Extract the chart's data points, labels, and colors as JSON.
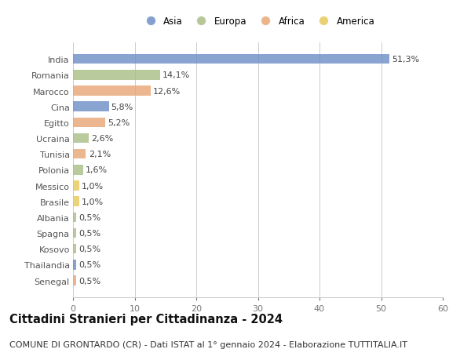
{
  "countries": [
    "India",
    "Romania",
    "Marocco",
    "Cina",
    "Egitto",
    "Ucraina",
    "Tunisia",
    "Polonia",
    "Messico",
    "Brasile",
    "Albania",
    "Spagna",
    "Kosovo",
    "Thailandia",
    "Senegal"
  ],
  "values": [
    51.3,
    14.1,
    12.6,
    5.8,
    5.2,
    2.6,
    2.1,
    1.6,
    1.0,
    1.0,
    0.5,
    0.5,
    0.5,
    0.5,
    0.5
  ],
  "value_labels": [
    "51,3%",
    "14,1%",
    "12,6%",
    "5,8%",
    "5,2%",
    "2,6%",
    "2,1%",
    "1,6%",
    "1,0%",
    "1,0%",
    "0,5%",
    "0,5%",
    "0,5%",
    "0,5%",
    "0,5%"
  ],
  "continents": [
    "Asia",
    "Europa",
    "Africa",
    "Asia",
    "Africa",
    "Europa",
    "Africa",
    "Europa",
    "America",
    "America",
    "Europa",
    "Europa",
    "Europa",
    "Asia",
    "Africa"
  ],
  "colors": {
    "Asia": "#7090c8",
    "Europa": "#aabf88",
    "Africa": "#e8a878",
    "America": "#e8c85a"
  },
  "xlim": [
    0,
    60
  ],
  "xticks": [
    0,
    10,
    20,
    30,
    40,
    50,
    60
  ],
  "background_color": "#ffffff",
  "plot_bg_color": "#ffffff",
  "grid_color": "#cccccc",
  "title": "Cittadini Stranieri per Cittadinanza - 2024",
  "subtitle": "COMUNE DI GRONTARDO (CR) - Dati ISTAT al 1° gennaio 2024 - Elaborazione TUTTITALIA.IT",
  "title_fontsize": 10.5,
  "subtitle_fontsize": 8,
  "bar_height": 0.62,
  "label_fontsize": 8,
  "tick_fontsize": 8,
  "legend_fontsize": 8.5,
  "legend_order": [
    "Asia",
    "Europa",
    "Africa",
    "America"
  ]
}
